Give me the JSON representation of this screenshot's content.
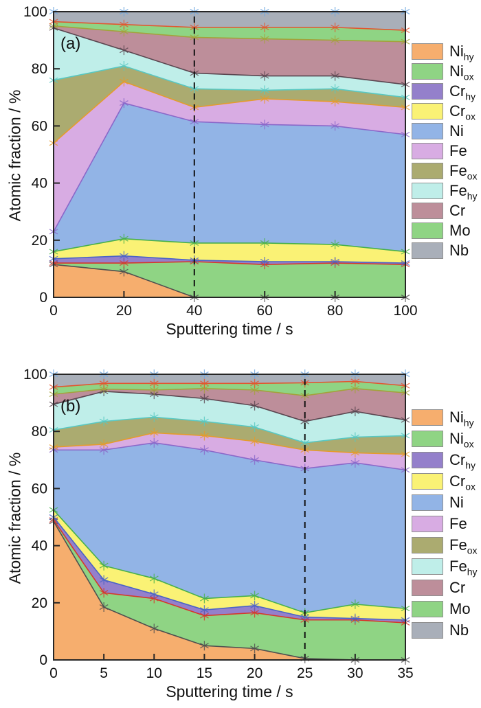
{
  "figure": {
    "background": "#ffffff",
    "axis_color": "#262626",
    "text_color": "#111111",
    "dashed_line_color": "#111111"
  },
  "palette": {
    "Ni_hy": {
      "fill": "#F6AE6E",
      "line": "#4F4F4F"
    },
    "Ni_ox": {
      "fill": "#8FD484",
      "line": "#D6372B"
    },
    "Cr_hy": {
      "fill": "#9480CB",
      "line": "#4A63C8"
    },
    "Cr_ox": {
      "fill": "#FAF275",
      "line": "#47B04B"
    },
    "Ni": {
      "fill": "#92B4E6",
      "line": "#8A68C9"
    },
    "Fe": {
      "fill": "#D8ACE3",
      "line": "#E59B2C"
    },
    "Fe_ox": {
      "fill": "#ABAB70",
      "line": "#58C8C2"
    },
    "Fe_hy": {
      "fill": "#BFEEE9",
      "line": "#5A4650"
    },
    "Cr": {
      "fill": "#BD8E9A",
      "line": "#A3A23B"
    },
    "Mo": {
      "fill": "#8FD484",
      "line": "#E2562F"
    },
    "Nb": {
      "fill": "#A9AFB9",
      "line": "#6FA8E0"
    }
  },
  "legend": {
    "items": [
      {
        "series": "Ni_hy",
        "base": "Ni",
        "sub": "hy"
      },
      {
        "series": "Ni_ox",
        "base": "Ni",
        "sub": "ox"
      },
      {
        "series": "Cr_hy",
        "base": "Cr",
        "sub": "hy"
      },
      {
        "series": "Cr_ox",
        "base": "Cr",
        "sub": "ox"
      },
      {
        "series": "Ni",
        "base": "Ni",
        "sub": ""
      },
      {
        "series": "Fe",
        "base": "Fe",
        "sub": ""
      },
      {
        "series": "Fe_ox",
        "base": "Fe",
        "sub": "ox"
      },
      {
        "series": "Fe_hy",
        "base": "Fe",
        "sub": "hy"
      },
      {
        "series": "Cr",
        "base": "Cr",
        "sub": ""
      },
      {
        "series": "Mo",
        "base": "Mo",
        "sub": ""
      },
      {
        "series": "Nb",
        "base": "Nb",
        "sub": ""
      }
    ]
  },
  "chart_data": [
    {
      "id": "a",
      "type": "area",
      "panel_label": "(a)",
      "xlabel": "Sputtering time / s",
      "ylabel": "Atomic fraction / %",
      "xlim": [
        0,
        100
      ],
      "ylim": [
        0,
        100
      ],
      "xticks": [
        0,
        20,
        40,
        60,
        80,
        100
      ],
      "yticks": [
        0,
        20,
        40,
        60,
        80,
        100
      ],
      "grid": false,
      "legend_position": "right",
      "dashed_line_x": 40,
      "x": [
        0,
        20,
        40,
        60,
        80,
        100
      ],
      "series": [
        {
          "name": "Ni_hy",
          "values": [
            11.5,
            9,
            0,
            0,
            0,
            0
          ]
        },
        {
          "name": "Ni_ox",
          "values": [
            0.5,
            3,
            12.5,
            11.5,
            12,
            11.5
          ]
        },
        {
          "name": "Cr_hy",
          "values": [
            1.5,
            2.5,
            0.5,
            1,
            0.5,
            0.5
          ]
        },
        {
          "name": "Cr_ox",
          "values": [
            2.5,
            6,
            6,
            6.5,
            6,
            4
          ]
        },
        {
          "name": "Ni",
          "values": [
            7,
            47.5,
            42.5,
            41.5,
            41.5,
            41
          ]
        },
        {
          "name": "Fe",
          "values": [
            31,
            7.5,
            5,
            9,
            8.5,
            9.5
          ]
        },
        {
          "name": "Fe_ox",
          "values": [
            22,
            5.5,
            6.5,
            3,
            4.5,
            3.5
          ]
        },
        {
          "name": "Fe_hy",
          "values": [
            18.3,
            5.5,
            5.5,
            5,
            4.5,
            4.5
          ]
        },
        {
          "name": "Cr",
          "values": [
            0.7,
            6.5,
            12.5,
            13,
            12.5,
            15
          ]
        },
        {
          "name": "Mo",
          "values": [
            1.5,
            2.5,
            3.5,
            4,
            4.5,
            4
          ]
        },
        {
          "name": "Nb",
          "values": [
            3.5,
            4.5,
            5.5,
            5.5,
            5.5,
            6.5
          ]
        }
      ]
    },
    {
      "id": "b",
      "type": "area",
      "panel_label": "(b)",
      "xlabel": "Sputtering time / s",
      "ylabel": "Atomic fraction / %",
      "xlim": [
        0,
        35
      ],
      "ylim": [
        0,
        100
      ],
      "xticks": [
        0,
        5,
        10,
        15,
        20,
        25,
        30,
        35
      ],
      "yticks": [
        0,
        20,
        40,
        60,
        80,
        100
      ],
      "grid": false,
      "legend_position": "right",
      "dashed_line_x": 25,
      "x": [
        0,
        5,
        10,
        15,
        20,
        25,
        30,
        35
      ],
      "series": [
        {
          "name": "Ni_hy",
          "values": [
            48.5,
            18.5,
            11,
            5,
            4,
            0.5,
            0,
            0
          ]
        },
        {
          "name": "Ni_ox",
          "values": [
            0.5,
            5,
            10.5,
            10.5,
            12.5,
            13.5,
            14,
            13
          ]
        },
        {
          "name": "Cr_hy",
          "values": [
            1,
            4.5,
            1.5,
            2,
            2.5,
            1,
            0.5,
            1
          ]
        },
        {
          "name": "Cr_ox",
          "values": [
            2.5,
            5,
            5.5,
            4,
            3.5,
            1.5,
            5,
            4
          ]
        },
        {
          "name": "Ni",
          "values": [
            21,
            40.5,
            47.5,
            52,
            47.5,
            50.5,
            49.5,
            48.5
          ]
        },
        {
          "name": "Fe",
          "values": [
            1,
            2,
            3.5,
            5,
            6.5,
            6.5,
            3.5,
            5.5
          ]
        },
        {
          "name": "Fe_ox",
          "values": [
            6,
            8,
            5.5,
            5,
            5,
            2.5,
            5.5,
            6.5
          ]
        },
        {
          "name": "Fe_hy",
          "values": [
            9,
            10.5,
            8,
            8,
            7.5,
            7.5,
            9,
            5.5
          ]
        },
        {
          "name": "Cr",
          "values": [
            3.5,
            0.8,
            1.5,
            3.5,
            5.5,
            9,
            8,
            9.5
          ]
        },
        {
          "name": "Mo",
          "values": [
            2.5,
            2,
            2.3,
            1.8,
            2.3,
            4.5,
            2.5,
            2.5
          ]
        },
        {
          "name": "Nb",
          "values": [
            4.5,
            3.2,
            3.2,
            3.2,
            3.2,
            3,
            2.5,
            4
          ]
        }
      ]
    }
  ]
}
